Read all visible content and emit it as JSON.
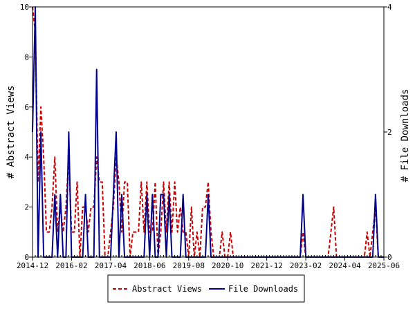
{
  "chart_data": {
    "type": "line",
    "ylabel": "# Abstract Views",
    "y2label": "# File Downloads",
    "ylim": [
      0,
      10
    ],
    "y2lim": [
      0,
      4
    ],
    "yticks": [
      0,
      2,
      4,
      6,
      8,
      10
    ],
    "y2ticks": [
      0,
      2,
      4
    ],
    "xticks": [
      "2014-12",
      "2016-02",
      "2017-04",
      "2018-06",
      "2019-08",
      "2020-10",
      "2021-12",
      "2023-02",
      "2024-04",
      "2025-06"
    ],
    "xrange": [
      "2014-12",
      "2025-06"
    ],
    "grid": false,
    "legend_position": "bottom-center",
    "colors": {
      "abstract": "#cc0000",
      "downloads": "#00008b"
    },
    "series": [
      {
        "name": "Abstract Views",
        "axis": "left",
        "style": "dashed",
        "color": "#cc0000",
        "points": [
          [
            "2014-12",
            10
          ],
          [
            "2015-01",
            9
          ],
          [
            "2015-02",
            3
          ],
          [
            "2015-03",
            6
          ],
          [
            "2015-04",
            4
          ],
          [
            "2015-05",
            1
          ],
          [
            "2015-06",
            1
          ],
          [
            "2015-07",
            2
          ],
          [
            "2015-08",
            4
          ],
          [
            "2015-09",
            1
          ],
          [
            "2015-10",
            2
          ],
          [
            "2015-11",
            1
          ],
          [
            "2015-12",
            2
          ],
          [
            "2016-01",
            4
          ],
          [
            "2016-02",
            1
          ],
          [
            "2016-03",
            1
          ],
          [
            "2016-04",
            3
          ],
          [
            "2016-05",
            0
          ],
          [
            "2016-06",
            2
          ],
          [
            "2016-07",
            2
          ],
          [
            "2016-08",
            1
          ],
          [
            "2016-09",
            2
          ],
          [
            "2016-10",
            2
          ],
          [
            "2016-11",
            4
          ],
          [
            "2016-12",
            3
          ],
          [
            "2017-01",
            3
          ],
          [
            "2017-02",
            0
          ],
          [
            "2017-03",
            0
          ],
          [
            "2017-04",
            1
          ],
          [
            "2017-05",
            2
          ],
          [
            "2017-06",
            4
          ],
          [
            "2017-07",
            3
          ],
          [
            "2017-08",
            1
          ],
          [
            "2017-09",
            3
          ],
          [
            "2017-10",
            3
          ],
          [
            "2017-11",
            0
          ],
          [
            "2017-12",
            1
          ],
          [
            "2018-01",
            1
          ],
          [
            "2018-02",
            1
          ],
          [
            "2018-03",
            3
          ],
          [
            "2018-04",
            1
          ],
          [
            "2018-05",
            3
          ],
          [
            "2018-06",
            1
          ],
          [
            "2018-07",
            1
          ],
          [
            "2018-08",
            3
          ],
          [
            "2018-09",
            0
          ],
          [
            "2018-10",
            1
          ],
          [
            "2018-11",
            3
          ],
          [
            "2018-12",
            1
          ],
          [
            "2019-01",
            3
          ],
          [
            "2019-02",
            1
          ],
          [
            "2019-03",
            3
          ],
          [
            "2019-04",
            1
          ],
          [
            "2019-05",
            2
          ],
          [
            "2019-06",
            1
          ],
          [
            "2019-07",
            1
          ],
          [
            "2019-08",
            0
          ],
          [
            "2019-09",
            2
          ],
          [
            "2019-10",
            0
          ],
          [
            "2019-11",
            1
          ],
          [
            "2019-12",
            0
          ],
          [
            "2020-01",
            2
          ],
          [
            "2020-02",
            2
          ],
          [
            "2020-03",
            3
          ],
          [
            "2020-04",
            1
          ],
          [
            "2020-05",
            0
          ],
          [
            "2020-06",
            0
          ],
          [
            "2020-07",
            0
          ],
          [
            "2020-08",
            1
          ],
          [
            "2020-09",
            0
          ],
          [
            "2020-10",
            0
          ],
          [
            "2020-11",
            1
          ],
          [
            "2020-12",
            0
          ],
          [
            "2021-01",
            0
          ],
          [
            "2021-02",
            0
          ],
          [
            "2021-03",
            0
          ],
          [
            "2021-04",
            0
          ],
          [
            "2021-05",
            0
          ],
          [
            "2021-06",
            0
          ],
          [
            "2021-07",
            0
          ],
          [
            "2021-08",
            0
          ],
          [
            "2021-09",
            0
          ],
          [
            "2021-10",
            0
          ],
          [
            "2021-11",
            0
          ],
          [
            "2021-12",
            0
          ],
          [
            "2022-01",
            0
          ],
          [
            "2022-02",
            0
          ],
          [
            "2022-03",
            0
          ],
          [
            "2022-04",
            0
          ],
          [
            "2022-05",
            0
          ],
          [
            "2022-06",
            0
          ],
          [
            "2022-07",
            0
          ],
          [
            "2022-08",
            0
          ],
          [
            "2022-09",
            0
          ],
          [
            "2022-10",
            0
          ],
          [
            "2022-11",
            0
          ],
          [
            "2022-12",
            0
          ],
          [
            "2023-01",
            1
          ],
          [
            "2023-02",
            0
          ],
          [
            "2023-03",
            0
          ],
          [
            "2023-04",
            0
          ],
          [
            "2023-05",
            0
          ],
          [
            "2023-06",
            0
          ],
          [
            "2023-07",
            0
          ],
          [
            "2023-08",
            0
          ],
          [
            "2023-09",
            0
          ],
          [
            "2023-10",
            0
          ],
          [
            "2023-11",
            1
          ],
          [
            "2023-12",
            2
          ],
          [
            "2024-01",
            0
          ],
          [
            "2024-02",
            0
          ],
          [
            "2024-03",
            0
          ],
          [
            "2024-04",
            0
          ],
          [
            "2024-05",
            0
          ],
          [
            "2024-06",
            0
          ],
          [
            "2024-07",
            0
          ],
          [
            "2024-08",
            0
          ],
          [
            "2024-09",
            0
          ],
          [
            "2024-10",
            0
          ],
          [
            "2024-11",
            0
          ],
          [
            "2024-12",
            1
          ],
          [
            "2025-01",
            0
          ],
          [
            "2025-02",
            1
          ],
          [
            "2025-03",
            2
          ],
          [
            "2025-04",
            0
          ],
          [
            "2025-05",
            0
          ],
          [
            "2025-06",
            0
          ]
        ]
      },
      {
        "name": "File Downloads",
        "axis": "right",
        "style": "solid",
        "color": "#00008b",
        "points": [
          [
            "2014-12",
            2
          ],
          [
            "2015-01",
            4
          ],
          [
            "2015-02",
            0
          ],
          [
            "2015-03",
            2
          ],
          [
            "2015-04",
            0
          ],
          [
            "2015-05",
            0
          ],
          [
            "2015-06",
            0
          ],
          [
            "2015-07",
            0
          ],
          [
            "2015-08",
            1
          ],
          [
            "2015-09",
            0
          ],
          [
            "2015-10",
            1
          ],
          [
            "2015-11",
            0
          ],
          [
            "2015-12",
            0
          ],
          [
            "2016-01",
            2
          ],
          [
            "2016-02",
            0
          ],
          [
            "2016-03",
            0
          ],
          [
            "2016-04",
            0
          ],
          [
            "2016-05",
            0
          ],
          [
            "2016-06",
            0
          ],
          [
            "2016-07",
            1
          ],
          [
            "2016-08",
            0
          ],
          [
            "2016-09",
            0
          ],
          [
            "2016-10",
            0
          ],
          [
            "2016-11",
            3
          ],
          [
            "2016-12",
            0
          ],
          [
            "2017-01",
            0
          ],
          [
            "2017-02",
            0
          ],
          [
            "2017-03",
            0
          ],
          [
            "2017-04",
            0
          ],
          [
            "2017-05",
            1
          ],
          [
            "2017-06",
            2
          ],
          [
            "2017-07",
            0
          ],
          [
            "2017-08",
            1
          ],
          [
            "2017-09",
            0
          ],
          [
            "2017-10",
            0
          ],
          [
            "2017-11",
            0
          ],
          [
            "2017-12",
            0
          ],
          [
            "2018-01",
            0
          ],
          [
            "2018-02",
            0
          ],
          [
            "2018-03",
            0
          ],
          [
            "2018-04",
            0
          ],
          [
            "2018-05",
            1
          ],
          [
            "2018-06",
            0
          ],
          [
            "2018-07",
            1
          ],
          [
            "2018-08",
            0
          ],
          [
            "2018-09",
            0
          ],
          [
            "2018-10",
            1
          ],
          [
            "2018-11",
            1
          ],
          [
            "2018-12",
            0
          ],
          [
            "2019-01",
            1
          ],
          [
            "2019-02",
            0
          ],
          [
            "2019-03",
            0
          ],
          [
            "2019-04",
            0
          ],
          [
            "2019-05",
            0
          ],
          [
            "2019-06",
            1
          ],
          [
            "2019-07",
            0
          ],
          [
            "2019-08",
            0
          ],
          [
            "2019-09",
            0
          ],
          [
            "2019-10",
            0
          ],
          [
            "2019-11",
            0
          ],
          [
            "2019-12",
            0
          ],
          [
            "2020-01",
            0
          ],
          [
            "2020-02",
            0
          ],
          [
            "2020-03",
            1
          ],
          [
            "2020-04",
            0
          ],
          [
            "2020-05",
            0
          ],
          [
            "2020-06",
            0
          ],
          [
            "2020-07",
            0
          ],
          [
            "2020-08",
            0
          ],
          [
            "2020-09",
            0
          ],
          [
            "2020-10",
            0
          ],
          [
            "2020-11",
            0
          ],
          [
            "2020-12",
            0
          ],
          [
            "2021-01",
            0
          ],
          [
            "2021-02",
            0
          ],
          [
            "2021-03",
            0
          ],
          [
            "2021-04",
            0
          ],
          [
            "2021-05",
            0
          ],
          [
            "2021-06",
            0
          ],
          [
            "2021-07",
            0
          ],
          [
            "2021-08",
            0
          ],
          [
            "2021-09",
            0
          ],
          [
            "2021-10",
            0
          ],
          [
            "2021-11",
            0
          ],
          [
            "2021-12",
            0
          ],
          [
            "2022-01",
            0
          ],
          [
            "2022-02",
            0
          ],
          [
            "2022-03",
            0
          ],
          [
            "2022-04",
            0
          ],
          [
            "2022-05",
            0
          ],
          [
            "2022-06",
            0
          ],
          [
            "2022-07",
            0
          ],
          [
            "2022-08",
            0
          ],
          [
            "2022-09",
            0
          ],
          [
            "2022-10",
            0
          ],
          [
            "2022-11",
            0
          ],
          [
            "2022-12",
            0
          ],
          [
            "2023-01",
            1
          ],
          [
            "2023-02",
            0
          ],
          [
            "2023-03",
            0
          ],
          [
            "2023-04",
            0
          ],
          [
            "2023-05",
            0
          ],
          [
            "2023-06",
            0
          ],
          [
            "2023-07",
            0
          ],
          [
            "2023-08",
            0
          ],
          [
            "2023-09",
            0
          ],
          [
            "2023-10",
            0
          ],
          [
            "2023-11",
            0
          ],
          [
            "2023-12",
            0
          ],
          [
            "2024-01",
            0
          ],
          [
            "2024-02",
            0
          ],
          [
            "2024-03",
            0
          ],
          [
            "2024-04",
            0
          ],
          [
            "2024-05",
            0
          ],
          [
            "2024-06",
            0
          ],
          [
            "2024-07",
            0
          ],
          [
            "2024-08",
            0
          ],
          [
            "2024-09",
            0
          ],
          [
            "2024-10",
            0
          ],
          [
            "2024-11",
            0
          ],
          [
            "2024-12",
            0
          ],
          [
            "2025-01",
            0
          ],
          [
            "2025-02",
            0
          ],
          [
            "2025-03",
            1
          ],
          [
            "2025-04",
            0
          ],
          [
            "2025-05",
            0
          ],
          [
            "2025-06",
            0
          ]
        ]
      }
    ]
  }
}
